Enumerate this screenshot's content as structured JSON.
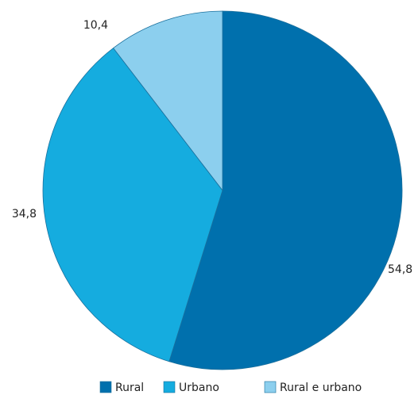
{
  "chart_data": {
    "type": "pie",
    "categories": [
      "Rural",
      "Urbano",
      "Rural e urbano"
    ],
    "values": [
      54.8,
      34.8,
      10.4
    ],
    "value_labels": [
      "54,8",
      "34,8",
      "10,4"
    ],
    "colors": [
      "#0070ad",
      "#15acdf",
      "#8ccfee"
    ],
    "legend": "bottom"
  }
}
